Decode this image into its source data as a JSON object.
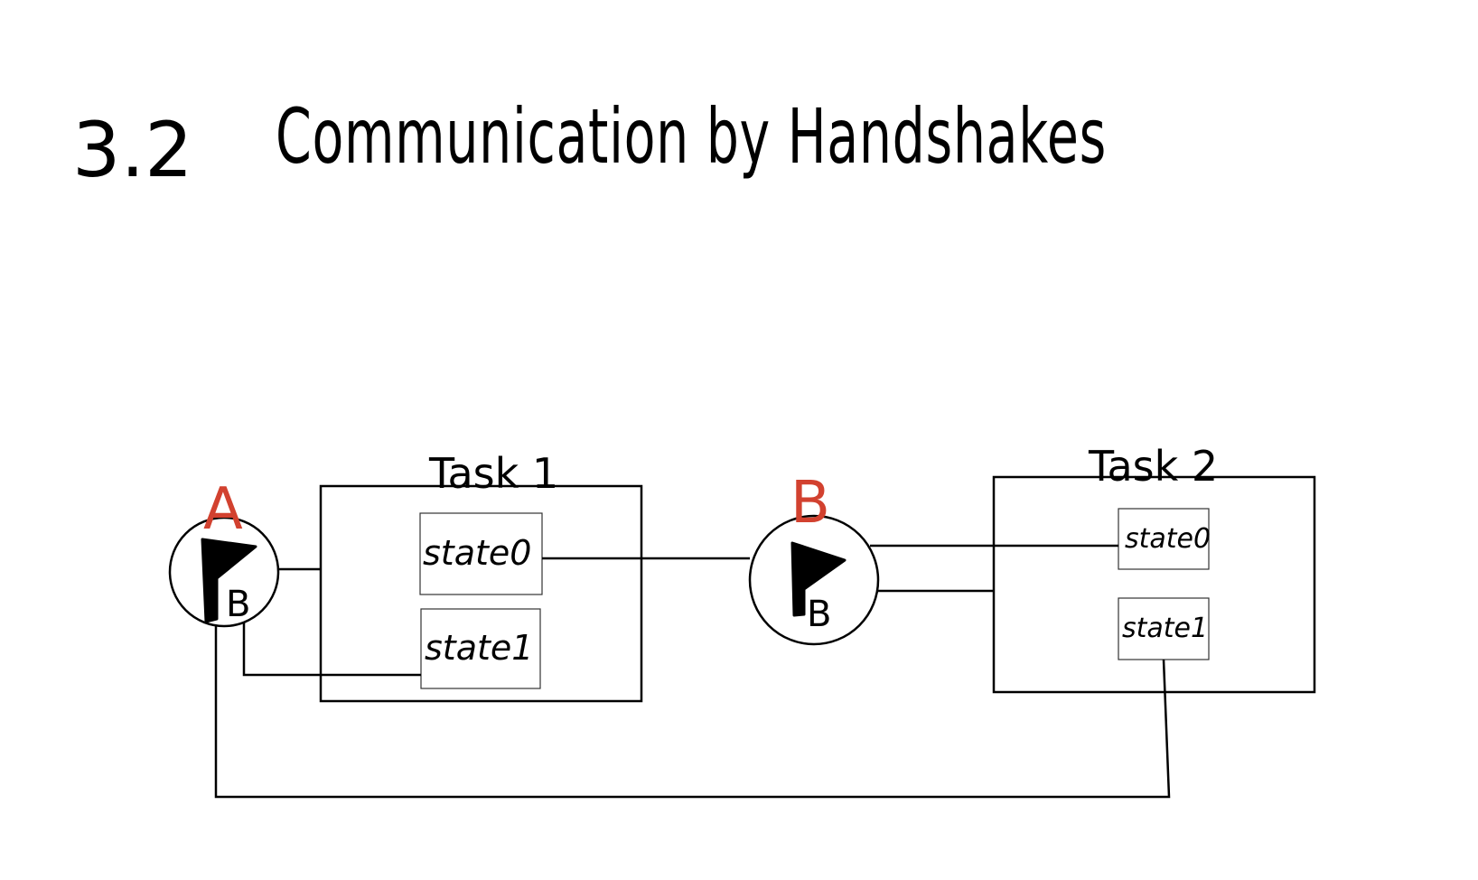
{
  "title": {
    "section_number": "3.2",
    "text": "Communication by Handshakes"
  },
  "tasks": {
    "task1": {
      "label": "Task 1",
      "states": [
        "state0",
        "state1"
      ]
    },
    "task2": {
      "label": "Task 2",
      "states": [
        "state0",
        "state1"
      ]
    }
  },
  "flags": {
    "a": {
      "label": "A",
      "letter": "B"
    },
    "b": {
      "label": "B",
      "letter": "B"
    }
  },
  "colors": {
    "ink": "#000000",
    "annotation_red": "#d2412f",
    "background": "#ffffff"
  },
  "icons": {
    "flag": "flag-icon"
  }
}
